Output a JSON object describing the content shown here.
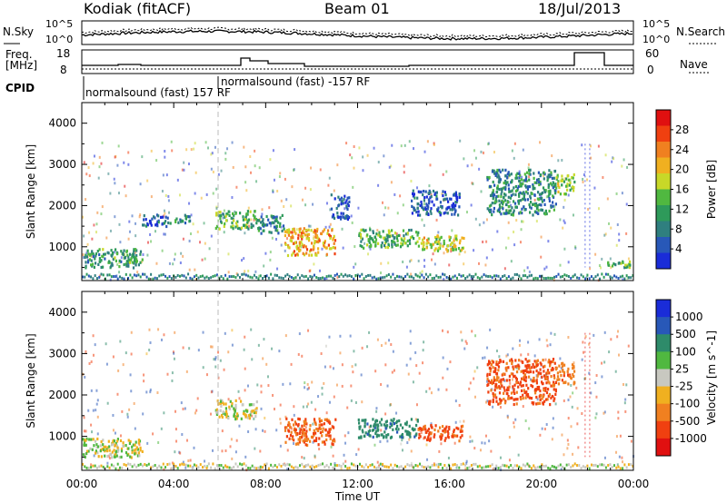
{
  "header": {
    "station": "Kodiak (fitACF)",
    "beam": "Beam 01",
    "date": "18/Jul/2013"
  },
  "top_panels": {
    "nsky_label": "N.Sky",
    "nsearch_label": "N.Search",
    "noise_ticks": [
      "10^5",
      "10^0"
    ],
    "freq_label": "Freq.",
    "freq_unit": "[MHz]",
    "freq_ticks": [
      "18",
      "8"
    ],
    "nave_label": "Nave",
    "nave_ticks": [
      "60",
      "0"
    ],
    "cpid_label": "CPID",
    "cpid_1": "normalsound (fast) 157 RF",
    "cpid_2": "normalsound (fast) -157 RF"
  },
  "chart_data": [
    {
      "type": "heatmap",
      "quantity": "Power",
      "ylabel": "Slant Range [km]",
      "xlabel": "Time UT",
      "ylim": [
        180,
        4500
      ],
      "xlim": [
        0,
        24
      ],
      "yticks": [
        1000,
        2000,
        3000,
        4000
      ],
      "xticks": [
        "00:00",
        "04:00",
        "08:00",
        "12:00",
        "16:00",
        "20:00",
        "00:00"
      ],
      "colorbar": {
        "label": "Power [dB]",
        "ticks": [
          "28",
          "24",
          "20",
          "16",
          "12",
          "8",
          "4"
        ],
        "colors": [
          "#e01010",
          "#f04010",
          "#f08020",
          "#f0b020",
          "#c8d828",
          "#50b840",
          "#2e9a5a",
          "#2f7f7f",
          "#2858b8",
          "#1a2cd8"
        ]
      },
      "scatter_regions": [
        {
          "t0": 0.0,
          "t1": 2.6,
          "r0": 520,
          "r1": 980,
          "value": 12
        },
        {
          "t0": 2.6,
          "t1": 3.7,
          "r0": 1520,
          "r1": 1820,
          "value": 6
        },
        {
          "t0": 3.7,
          "t1": 4.7,
          "r0": 1600,
          "r1": 1800,
          "value": 10
        },
        {
          "t0": 5.8,
          "t1": 7.6,
          "r0": 1450,
          "r1": 1900,
          "value": 14
        },
        {
          "t0": 7.6,
          "t1": 8.8,
          "r0": 1350,
          "r1": 1800,
          "value": 10
        },
        {
          "t0": 8.8,
          "t1": 11.0,
          "r0": 820,
          "r1": 1480,
          "value": 22
        },
        {
          "t0": 10.8,
          "t1": 11.6,
          "r0": 1700,
          "r1": 2300,
          "value": 6
        },
        {
          "t0": 12.0,
          "t1": 14.6,
          "r0": 1000,
          "r1": 1450,
          "value": 14
        },
        {
          "t0": 14.6,
          "t1": 16.6,
          "r0": 920,
          "r1": 1300,
          "value": 18
        },
        {
          "t0": 14.3,
          "t1": 16.4,
          "r0": 1800,
          "r1": 2400,
          "value": 6
        },
        {
          "t0": 17.6,
          "t1": 20.6,
          "r0": 1800,
          "r1": 2900,
          "value": 10
        },
        {
          "t0": 20.6,
          "t1": 21.4,
          "r0": 2300,
          "r1": 2800,
          "value": 16
        },
        {
          "t0": 22.8,
          "t1": 24.0,
          "r0": 520,
          "r1": 700,
          "value": 14
        }
      ]
    },
    {
      "type": "heatmap",
      "quantity": "Velocity",
      "ylabel": "Slant Range [km]",
      "xlabel": "Time UT",
      "ylim": [
        180,
        4500
      ],
      "xlim": [
        0,
        24
      ],
      "yticks": [
        1000,
        2000,
        3000,
        4000
      ],
      "xticks": [
        "00:00",
        "04:00",
        "08:00",
        "12:00",
        "16:00",
        "20:00",
        "00:00"
      ],
      "colorbar": {
        "label": "Velocity [m s^-1]",
        "ticks": [
          "1000",
          "500",
          "100",
          "25",
          "-25",
          "-100",
          "-500",
          "-1000"
        ],
        "colors": [
          "#1a2cd8",
          "#2858b8",
          "#2e8b6a",
          "#50b840",
          "#c8c8c0",
          "#f0b020",
          "#f08020",
          "#f04010",
          "#e01010"
        ]
      },
      "scatter_regions": [
        {
          "t0": 0.0,
          "t1": 2.6,
          "r0": 520,
          "r1": 980,
          "value": 0
        },
        {
          "t0": 5.8,
          "t1": 7.6,
          "r0": 1450,
          "r1": 1900,
          "value": 0
        },
        {
          "t0": 8.8,
          "t1": 11.0,
          "r0": 820,
          "r1": 1480,
          "value": -300
        },
        {
          "t0": 12.0,
          "t1": 14.6,
          "r0": 1000,
          "r1": 1450,
          "value": 200
        },
        {
          "t0": 14.6,
          "t1": 16.6,
          "r0": 920,
          "r1": 1300,
          "value": -400
        },
        {
          "t0": 17.6,
          "t1": 20.6,
          "r0": 1800,
          "r1": 2900,
          "value": -400
        },
        {
          "t0": 20.6,
          "t1": 21.4,
          "r0": 2300,
          "r1": 2800,
          "value": -200
        }
      ]
    }
  ]
}
